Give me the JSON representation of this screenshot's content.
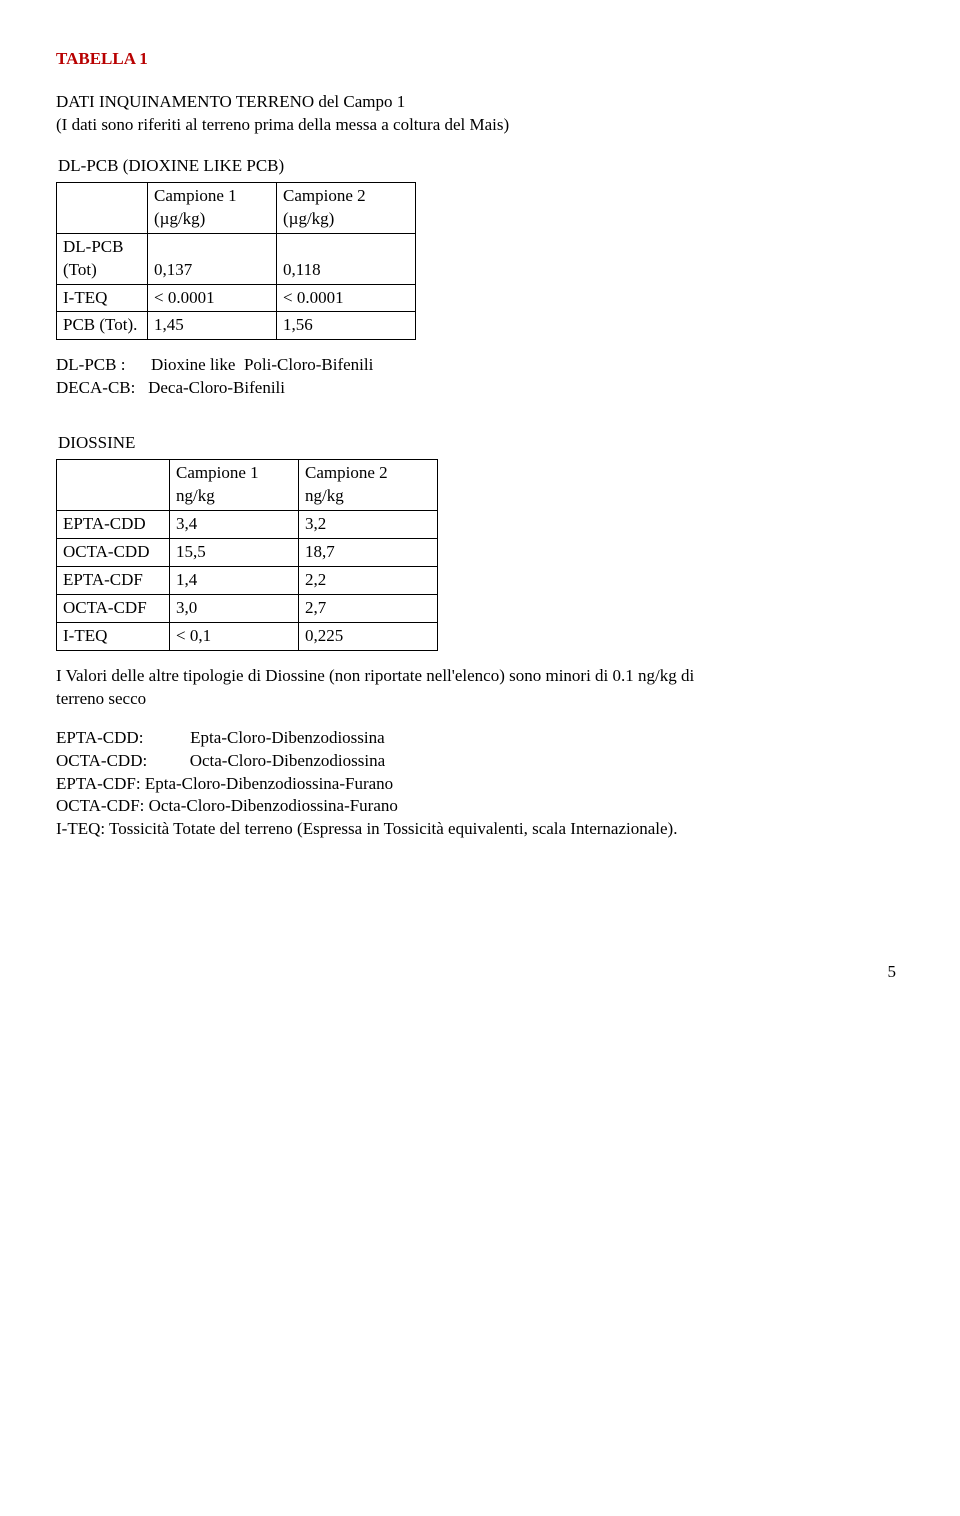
{
  "title": "TABELLA 1",
  "intro_l1": "DATI INQUINAMENTO TERRENO  del Campo 1",
  "intro_l2": "(I dati sono riferiti al terreno prima della messa a coltura del Mais)",
  "section1_h": "DL-PCB  (DIOXINE LIKE PCB)",
  "table1": {
    "head": {
      "c2a": "Campione 1",
      "c2b": "(µg/kg)",
      "c3a": "Campione     2",
      "c3b": "(µg/kg)"
    },
    "rows": [
      {
        "label_l1": "DL-PCB",
        "label_l2": "(Tot)",
        "v1": "0,137",
        "v2": "0,118"
      },
      {
        "label_l1": "I-TEQ",
        "label_l2": "",
        "v1": "< 0.0001",
        "v2": "< 0.0001"
      },
      {
        "label_l1": "PCB (Tot).",
        "label_l2": "",
        "v1": "1,45",
        "v2": "1,56"
      }
    ]
  },
  "defs1": [
    {
      "k": "DL-PCB :",
      "v": "Dioxine like  Poli-Cloro-Bifenili"
    },
    {
      "k": "DECA-CB:",
      "v": "Deca-Cloro-Bifenili"
    }
  ],
  "section2_h": "DIOSSINE",
  "table2": {
    "head": {
      "c2a": "Campione 1",
      "c2b": " ng/kg",
      "c3a": "Campione     2",
      "c3b": "ng/kg"
    },
    "rows": [
      {
        "label": "EPTA-CDD",
        "v1": "3,4",
        "v2": "3,2"
      },
      {
        "label": "OCTA-CDD",
        "v1": "15,5",
        "v2": "18,7"
      },
      {
        "label": "EPTA-CDF",
        "v1": "1,4",
        "v2": "2,2"
      },
      {
        "label": "OCTA-CDF",
        "v1": "3,0",
        "v2": "2,7"
      },
      {
        "label": "I-TEQ",
        "v1": "< 0,1",
        "v2": "0,225"
      }
    ]
  },
  "note_l1": "I Valori delle altre tipologie di Diossine (non riportate nell'elenco) sono minori di 0.1 ng/kg di",
  "note_l2": "terreno secco",
  "defs2": {
    "tabbed": [
      {
        "k": "EPTA-CDD:",
        "v": "Epta-Cloro-Dibenzodiossina"
      },
      {
        "k": "OCTA-CDD:",
        "v": "Octa-Cloro-Dibenzodiossina"
      }
    ],
    "lines": [
      "EPTA-CDF: Epta-Cloro-Dibenzodiossina-Furano",
      "OCTA-CDF: Octa-Cloro-Dibenzodiossina-Furano",
      "I-TEQ: Tossicità Totate del terreno (Espressa in Tossicità equivalenti, scala Internazionale)."
    ]
  },
  "page_number": "5"
}
